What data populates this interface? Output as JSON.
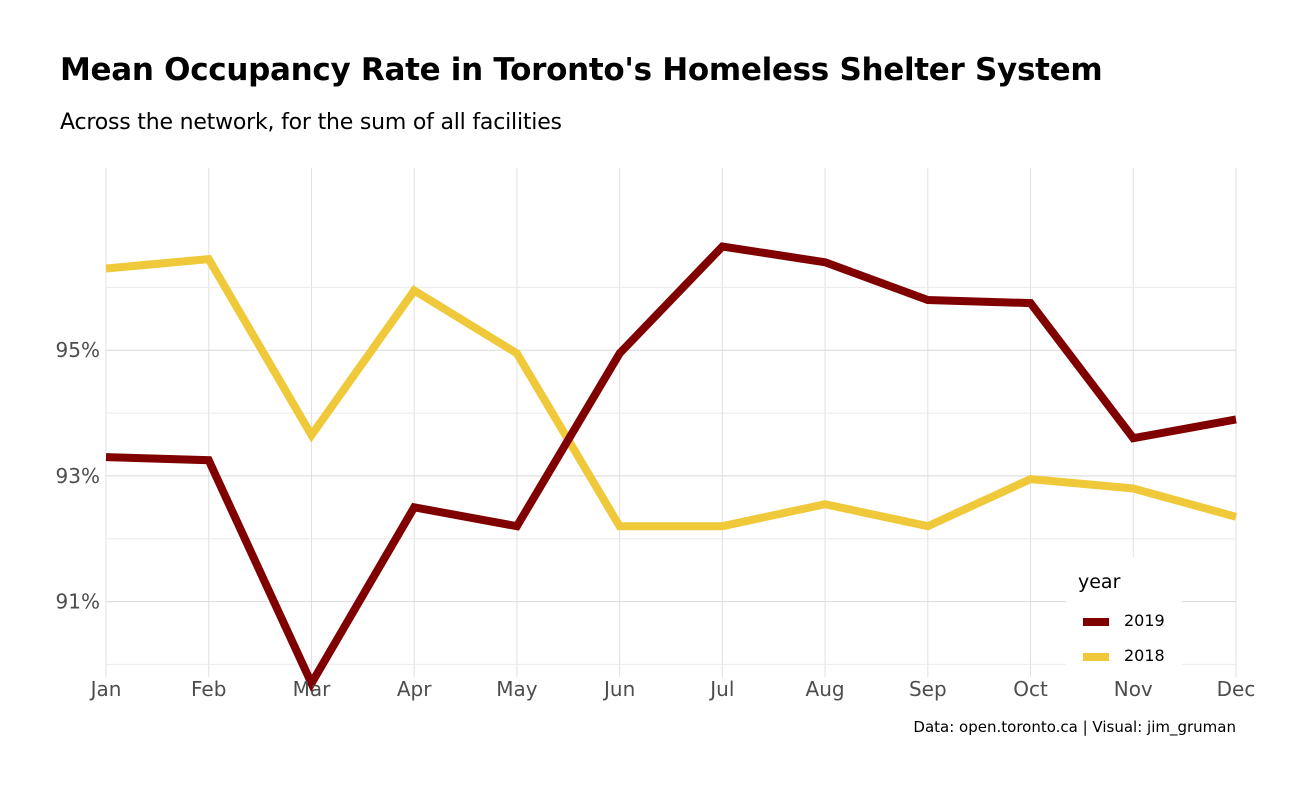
{
  "chart_data": {
    "type": "line",
    "title": "Mean Occupancy Rate in Toronto's Homeless Shelter System",
    "subtitle": "Across the network, for the sum of all facilities",
    "caption": "Data: open.toronto.ca | Visual: jim_gruman",
    "x": [
      "Jan",
      "Feb",
      "Mar",
      "Apr",
      "May",
      "Jun",
      "Jul",
      "Aug",
      "Sep",
      "Oct",
      "Nov",
      "Dec"
    ],
    "y_ticks": [
      91,
      93,
      95
    ],
    "y_tick_labels": [
      "91%",
      "93%",
      "95%"
    ],
    "ylim": [
      89.8,
      97.9
    ],
    "grid": true,
    "legend": {
      "title": "year",
      "position": "bottom-right"
    },
    "series": [
      {
        "name": "2019",
        "color": "#800000",
        "values": [
          93.3,
          93.25,
          89.7,
          92.5,
          92.2,
          94.95,
          96.65,
          96.4,
          95.8,
          95.75,
          93.6,
          93.9
        ]
      },
      {
        "name": "2018",
        "color": "#f0c93a",
        "values": [
          96.3,
          96.45,
          93.65,
          95.95,
          94.95,
          92.2,
          92.2,
          92.55,
          92.2,
          92.95,
          92.8,
          92.35
        ]
      }
    ]
  }
}
